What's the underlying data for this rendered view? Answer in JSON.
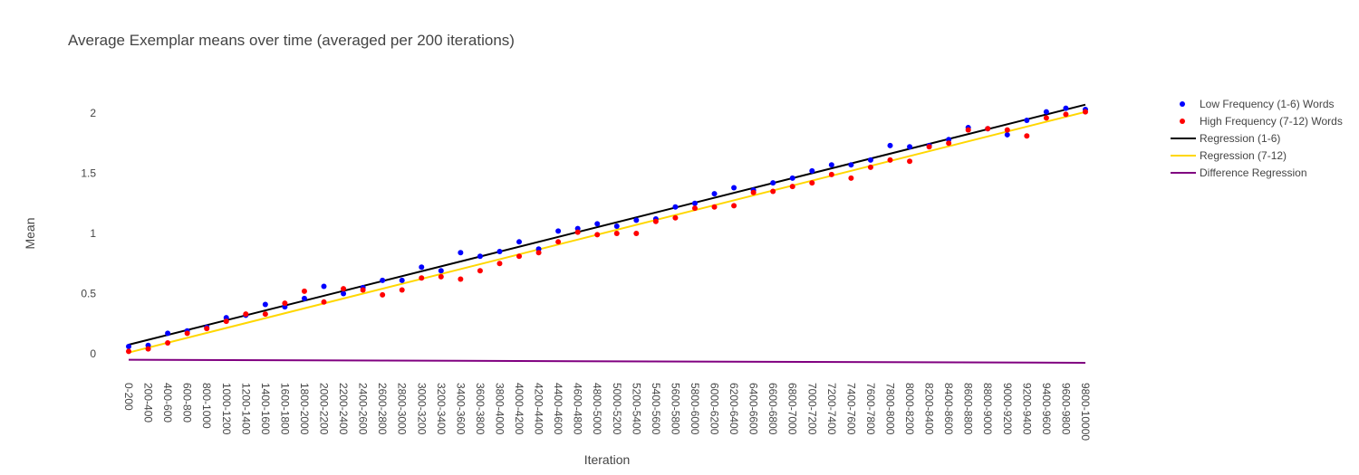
{
  "chart_data": {
    "type": "scatter",
    "title": "Average Exemplar means over time (averaged per 200 iterations)",
    "xlabel": "Iteration",
    "ylabel": "Mean",
    "categories": [
      "0-200",
      "200-400",
      "400-600",
      "600-800",
      "800-1000",
      "1000-1200",
      "1200-1400",
      "1400-1600",
      "1600-1800",
      "1800-2000",
      "2000-2200",
      "2200-2400",
      "2400-2600",
      "2600-2800",
      "2800-3000",
      "3000-3200",
      "3200-3400",
      "3400-3600",
      "3600-3800",
      "3800-4000",
      "4000-4200",
      "4200-4400",
      "4400-4600",
      "4600-4800",
      "4800-5000",
      "5000-5200",
      "5200-5400",
      "5400-5600",
      "5600-5800",
      "5800-6000",
      "6000-6200",
      "6200-6400",
      "6400-6600",
      "6600-6800",
      "6800-7000",
      "7000-7200",
      "7200-7400",
      "7400-7600",
      "7600-7800",
      "7800-8000",
      "8000-8200",
      "8200-8400",
      "8400-8600",
      "8600-8800",
      "8800-9000",
      "9000-9200",
      "9200-9400",
      "9400-9600",
      "9600-9800",
      "9800-10000"
    ],
    "yticks": [
      0,
      0.5,
      1,
      1.5,
      2
    ],
    "ylim": [
      -0.1,
      2.25
    ],
    "grid": false,
    "legend_position": "top-right",
    "series": [
      {
        "name": "Low Frequency (1-6) Words",
        "kind": "markers",
        "color": "#0000ff",
        "values": [
          0.06,
          0.07,
          0.17,
          0.19,
          0.22,
          0.3,
          0.32,
          0.41,
          0.39,
          0.46,
          0.56,
          0.5,
          0.55,
          0.61,
          0.61,
          0.72,
          0.69,
          0.84,
          0.81,
          0.85,
          0.93,
          0.87,
          1.02,
          1.04,
          1.08,
          1.06,
          1.11,
          1.12,
          1.22,
          1.25,
          1.33,
          1.38,
          1.36,
          1.42,
          1.46,
          1.52,
          1.57,
          1.57,
          1.61,
          1.73,
          1.72,
          1.73,
          1.78,
          1.88,
          1.87,
          1.82,
          1.94,
          2.01,
          2.04,
          2.03
        ]
      },
      {
        "name": "High Frequency (7-12) Words",
        "kind": "markers",
        "color": "#ff0000",
        "values": [
          0.02,
          0.04,
          0.09,
          0.17,
          0.21,
          0.27,
          0.33,
          0.33,
          0.42,
          0.52,
          0.43,
          0.54,
          0.53,
          0.49,
          0.53,
          0.63,
          0.64,
          0.62,
          0.69,
          0.75,
          0.81,
          0.84,
          0.93,
          1.01,
          0.99,
          1.0,
          1.0,
          1.1,
          1.13,
          1.21,
          1.22,
          1.23,
          1.34,
          1.35,
          1.39,
          1.42,
          1.49,
          1.46,
          1.55,
          1.61,
          1.6,
          1.72,
          1.75,
          1.86,
          1.87,
          1.86,
          1.81,
          1.96,
          1.99,
          2.01
        ]
      },
      {
        "name": "Regression (1-6)",
        "kind": "line",
        "color": "#000000",
        "start": 0.075,
        "end": 2.07
      },
      {
        "name": "Regression (7-12)",
        "kind": "line",
        "color": "#ffd700",
        "start": 0.01,
        "end": 2.01
      },
      {
        "name": "Difference Regression",
        "kind": "line",
        "color": "#800080",
        "start": -0.05,
        "end": -0.075
      }
    ]
  }
}
